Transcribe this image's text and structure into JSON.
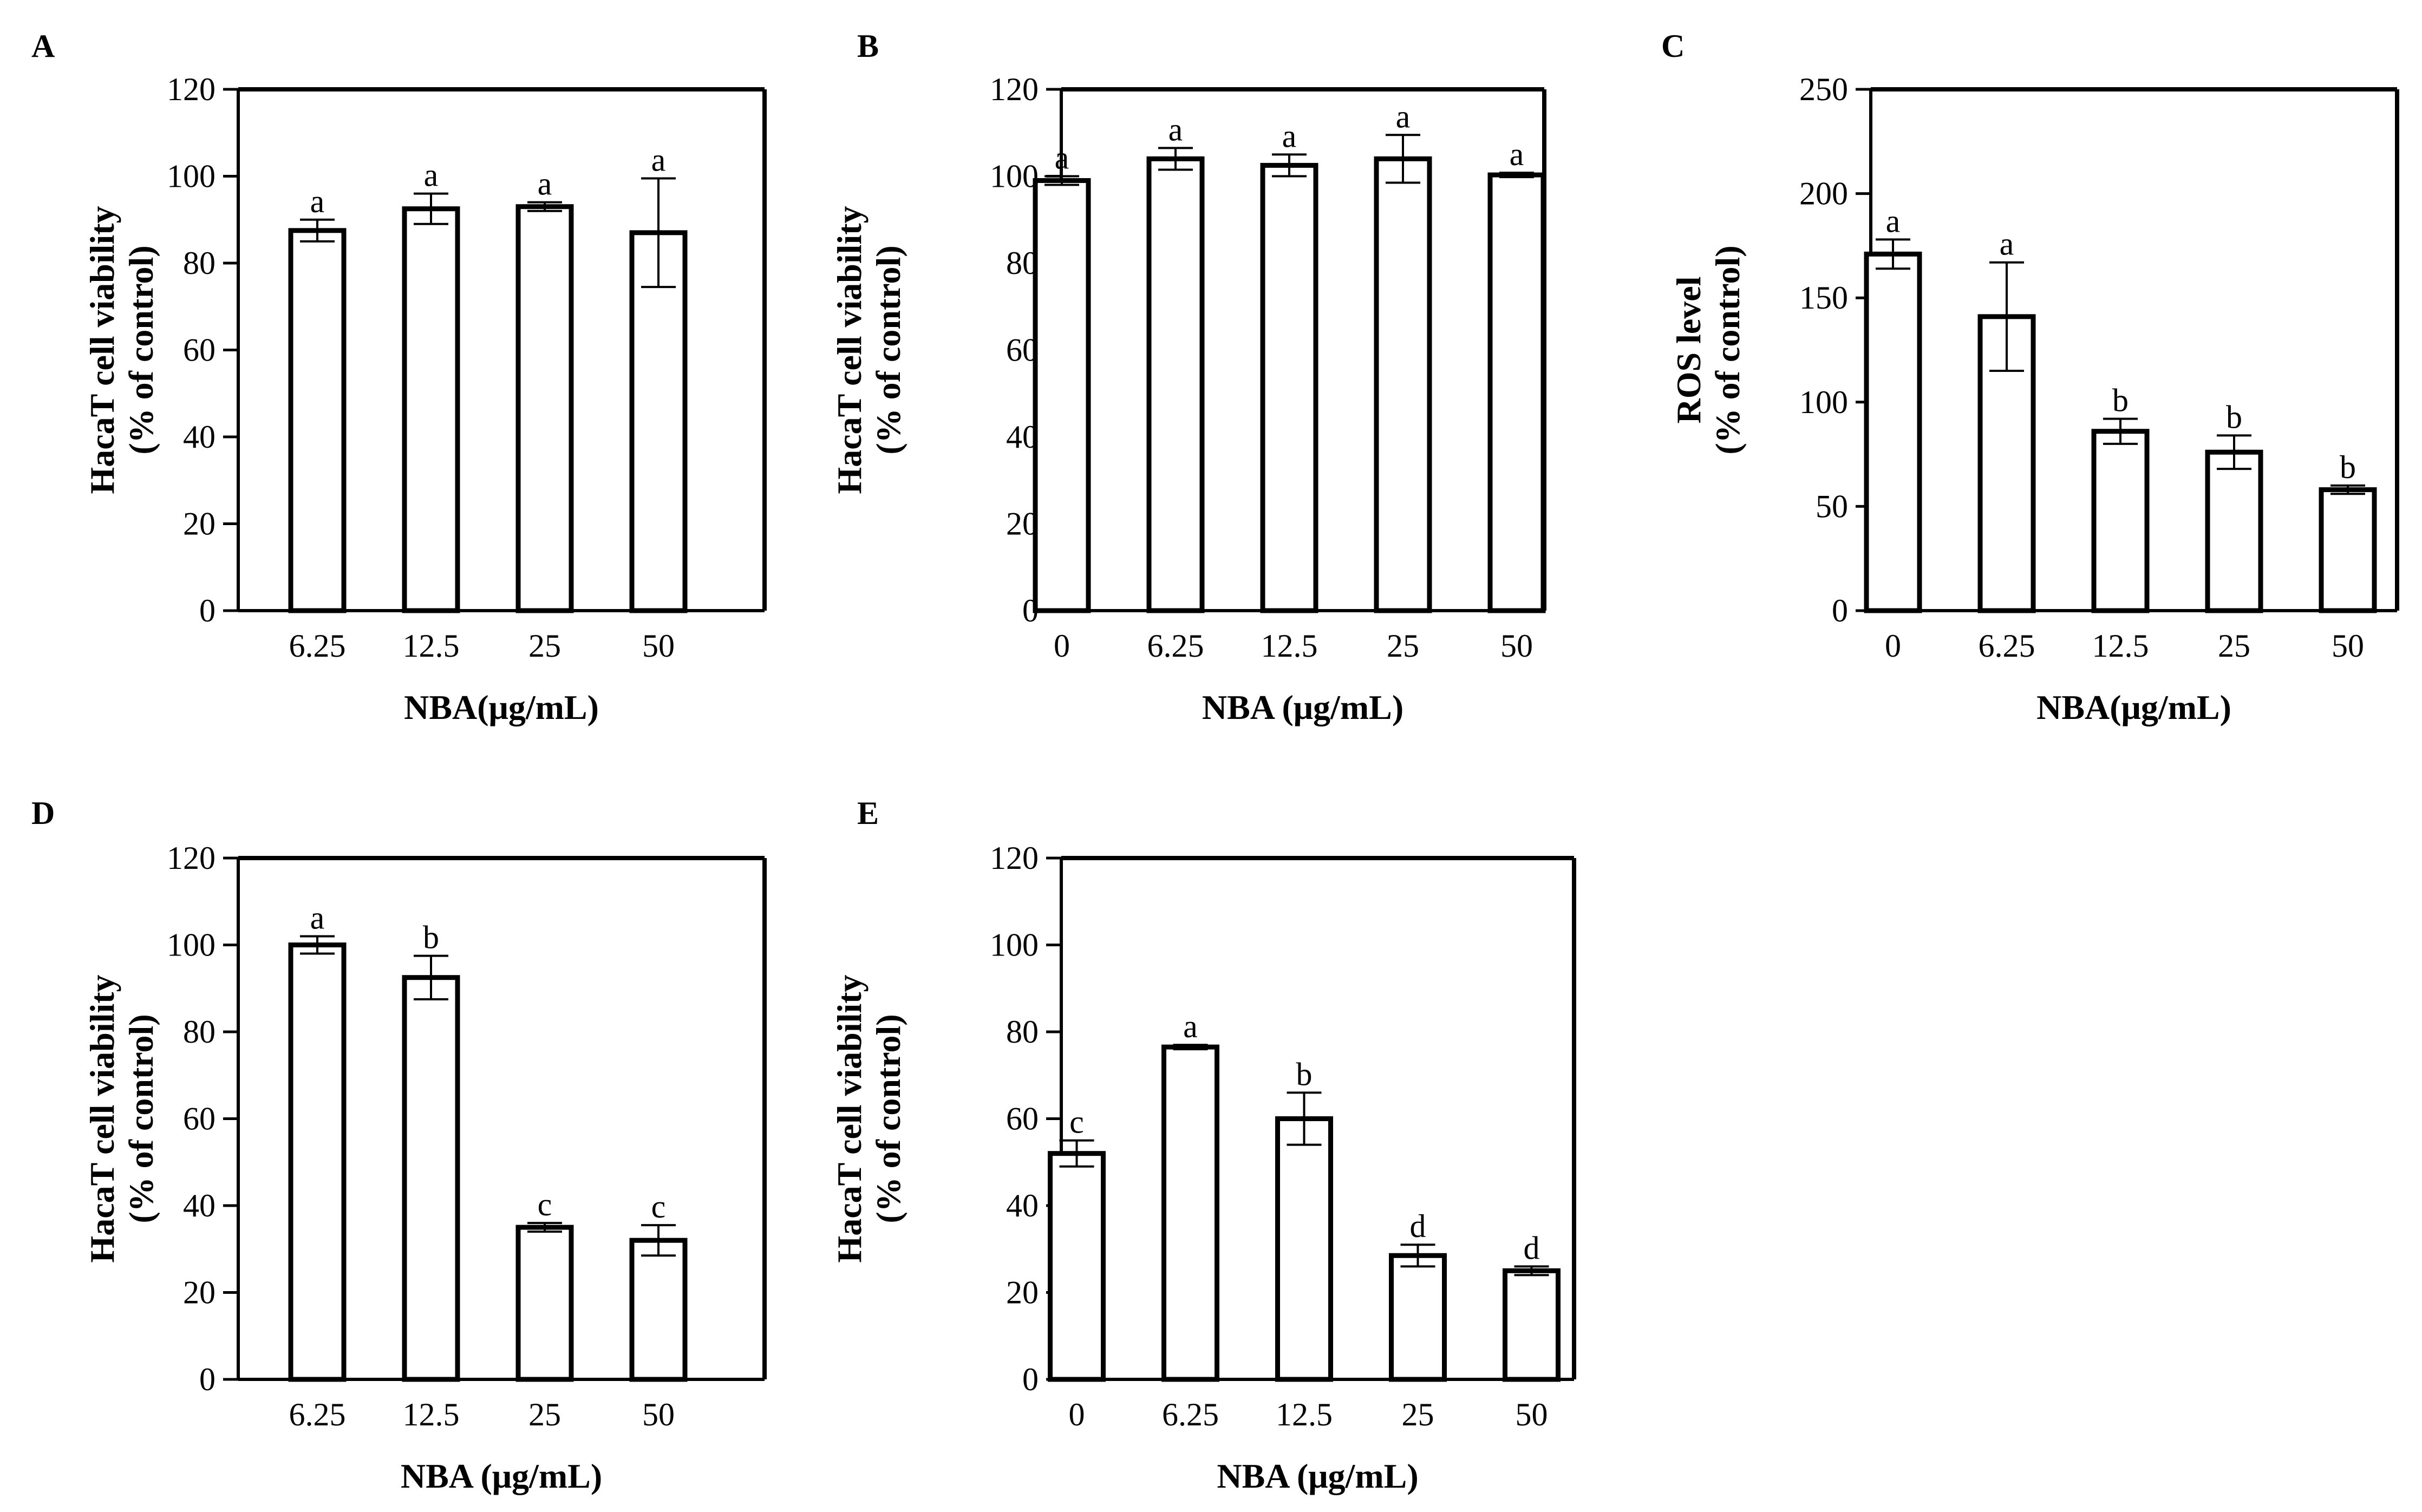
{
  "figure": {
    "panels": [
      "A",
      "B",
      "C",
      "D",
      "E"
    ]
  },
  "chart_data": [
    {
      "panel": "A",
      "type": "bar",
      "categories": [
        "6.25",
        "12.5",
        "25",
        "50"
      ],
      "values": [
        87.5,
        92.5,
        93.0,
        87.0
      ],
      "errors": [
        2.5,
        3.5,
        1.0,
        12.5
      ],
      "significance": [
        "a",
        "a",
        "a",
        "a"
      ],
      "ylabel_lines": [
        "HacaT cell viability",
        "(% of control)"
      ],
      "xlabel": "NBA(μg/mL)",
      "ylim": [
        0,
        120
      ],
      "yticks": [
        0,
        20,
        40,
        60,
        80,
        100,
        120
      ]
    },
    {
      "panel": "B",
      "type": "bar",
      "categories": [
        "0",
        "6.25",
        "12.5",
        "25",
        "50"
      ],
      "values": [
        99.0,
        104.0,
        102.5,
        104.0,
        100.3
      ],
      "errors": [
        1.0,
        2.5,
        2.5,
        5.5,
        0.5
      ],
      "significance": [
        "a",
        "a",
        "a",
        "a",
        "a"
      ],
      "ylabel_lines": [
        "HacaT cell viability",
        "(% of control)"
      ],
      "xlabel": "NBA (μg/mL)",
      "ylim": [
        0,
        120
      ],
      "yticks": [
        0,
        20,
        40,
        60,
        80,
        100,
        120
      ]
    },
    {
      "panel": "C",
      "type": "bar",
      "categories": [
        "0",
        "6.25",
        "12.5",
        "25",
        "50"
      ],
      "values": [
        171,
        141,
        86,
        76,
        58
      ],
      "errors": [
        7,
        26,
        6,
        8,
        2
      ],
      "significance": [
        "a",
        "a",
        "b",
        "b",
        "b"
      ],
      "ylabel_lines": [
        "ROS  level",
        "(% of control)"
      ],
      "xlabel": "NBA(μg/mL)",
      "ylim": [
        0,
        250
      ],
      "yticks": [
        0,
        50,
        100,
        150,
        200,
        250
      ]
    },
    {
      "panel": "D",
      "type": "bar",
      "categories": [
        "6.25",
        "12.5",
        "25",
        "50"
      ],
      "values": [
        100.0,
        92.5,
        35.0,
        32.0
      ],
      "errors": [
        2.0,
        5.0,
        1.0,
        3.5
      ],
      "significance": [
        "a",
        "b",
        "c",
        "c"
      ],
      "ylabel_lines": [
        "HacaT cell viability",
        "(% of control)"
      ],
      "xlabel": "NBA (μg/mL)",
      "ylim": [
        0,
        120
      ],
      "yticks": [
        0,
        20,
        40,
        60,
        80,
        100,
        120
      ]
    },
    {
      "panel": "E",
      "type": "bar",
      "categories": [
        "0",
        "6.25",
        "12.5",
        "25",
        "50"
      ],
      "values": [
        52.0,
        76.5,
        60.0,
        28.5,
        25.0
      ],
      "errors": [
        3.0,
        0.5,
        6.0,
        2.5,
        1.0
      ],
      "significance": [
        "c",
        "a",
        "b",
        "d",
        "d"
      ],
      "ylabel_lines": [
        "HacaT cell viability",
        "(% of control)"
      ],
      "xlabel": "NBA (μg/mL)",
      "ylim": [
        0,
        120
      ],
      "yticks": [
        0,
        20,
        40,
        60,
        80,
        100,
        120
      ]
    }
  ]
}
